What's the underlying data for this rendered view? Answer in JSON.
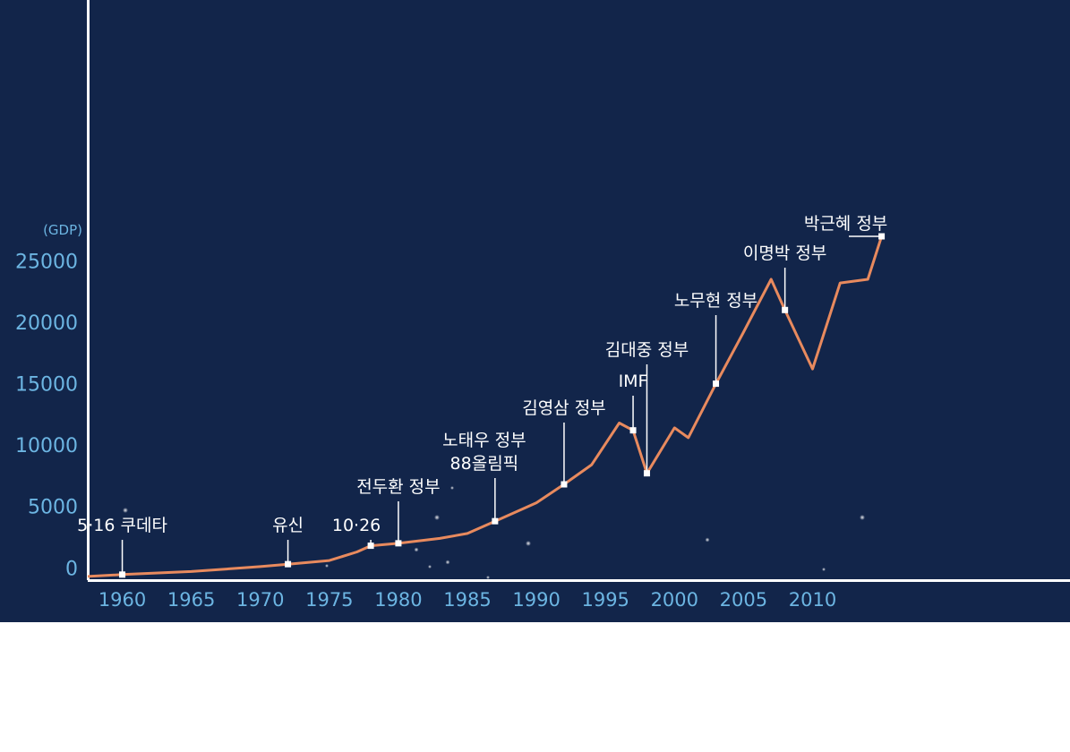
{
  "chart_data": {
    "type": "line",
    "ylabel": "(GDP)",
    "ylim": [
      -1000,
      27000
    ],
    "xlim": [
      1957.5,
      2016
    ],
    "yticks": [
      0,
      5000,
      10000,
      15000,
      20000,
      25000
    ],
    "ytick_labels": [
      "0",
      "5000",
      "10000",
      "15000",
      "20000",
      "25000"
    ],
    "xticks": [
      1960,
      1965,
      1970,
      1975,
      1980,
      1985,
      1990,
      1995,
      2000,
      2005,
      2010
    ],
    "xtick_labels": [
      "1960",
      "1965",
      "1970",
      "1975",
      "1980",
      "1985",
      "1990",
      "1995",
      "2000",
      "2005",
      "2010"
    ],
    "line_color": "#e88a5e",
    "background": "#12254a",
    "series": [
      {
        "x": [
          1957.5,
          1960,
          1965,
          1970,
          1972,
          1975,
          1977,
          1978,
          1980,
          1983,
          1985,
          1987,
          1990,
          1992,
          1994,
          1996,
          1997,
          1998,
          2000,
          2001,
          2003,
          2005,
          2007,
          2008,
          2010,
          2012,
          2014,
          2015
        ],
        "y": [
          -700,
          -550,
          -300,
          100,
          300,
          600,
          1300,
          1800,
          2000,
          2400,
          2800,
          3800,
          5300,
          6800,
          8400,
          11800,
          11200,
          7700,
          11400,
          10600,
          15000,
          19200,
          23500,
          21000,
          16200,
          23200,
          23500,
          27000
        ]
      }
    ],
    "annotations": [
      {
        "label": "5·16 쿠데타",
        "x": 1960,
        "y": -550
      },
      {
        "label": "유신",
        "x": 1972,
        "y": 300
      },
      {
        "label": "10·26",
        "x": 1978,
        "y": 1800
      },
      {
        "label": "전두환 정부",
        "x": 1980,
        "y": 2000
      },
      {
        "label": "노태우 정부",
        "label2": "88올림픽",
        "x": 1987,
        "y": 3800
      },
      {
        "label": "김영삼 정부",
        "x": 1992,
        "y": 6800
      },
      {
        "label": "IMF",
        "x": 1997,
        "y": 11200
      },
      {
        "label": "김대중 정부",
        "x": 1998,
        "y": 7700
      },
      {
        "label": "노무현 정부",
        "x": 2003,
        "y": 15000
      },
      {
        "label": "이명박 정부",
        "x": 2008,
        "y": 21000
      },
      {
        "label": "박근혜 정부",
        "x": 2015,
        "y": 27000
      }
    ]
  }
}
